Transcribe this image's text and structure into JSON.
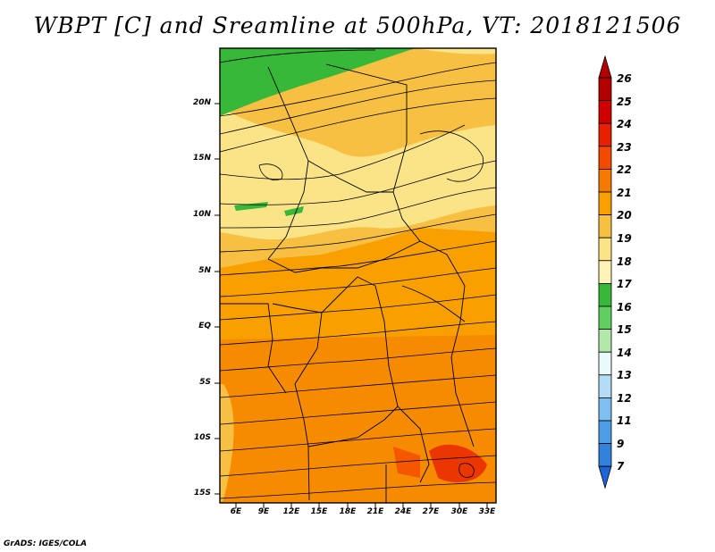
{
  "title": "WBPT [C] and Sreamline at 500hPa, VT: 2018121506",
  "footer": "GrADS: IGES/COLA",
  "map": {
    "lat_labels": [
      "20N",
      "15N",
      "10N",
      "5N",
      "EQ",
      "5S",
      "10S",
      "15S"
    ],
    "lon_labels": [
      "6E",
      "9E",
      "12E",
      "15E",
      "18E",
      "21E",
      "24E",
      "27E",
      "30E",
      "33E"
    ]
  },
  "colorbar": {
    "labels": [
      "26",
      "25",
      "24",
      "23",
      "22",
      "21",
      "20",
      "19",
      "18",
      "17",
      "16",
      "15",
      "14",
      "13",
      "12",
      "11",
      "9",
      "7"
    ],
    "colors": [
      "#b30000",
      "#d00000",
      "#e82000",
      "#f24a00",
      "#f57a00",
      "#f9a000",
      "#f7c043",
      "#fbe487",
      "#fff3b8",
      "#38b838",
      "#60cf60",
      "#b2e8a8",
      "#e8fafa",
      "#b4dcf4",
      "#7cbff0",
      "#4c9ce6",
      "#3182dc",
      "#1e64d8"
    ]
  }
}
